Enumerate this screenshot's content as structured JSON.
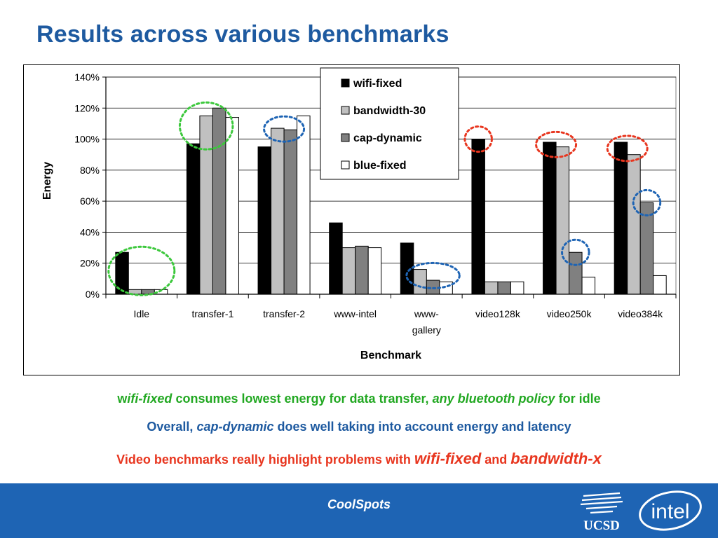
{
  "slide": {
    "title": "Results across various benchmarks"
  },
  "chart_data": {
    "type": "bar",
    "ylabel": "Energy",
    "xlabel": "Benchmark",
    "ylim": [
      0,
      140
    ],
    "yticks": [
      0,
      20,
      40,
      60,
      80,
      100,
      120,
      140
    ],
    "ytick_labels": [
      "0%",
      "20%",
      "40%",
      "60%",
      "80%",
      "100%",
      "120%",
      "140%"
    ],
    "categories": [
      "Idle",
      "transfer-1",
      "transfer-2",
      "www-intel",
      "www-gallery",
      "video128k",
      "video250k",
      "video384k"
    ],
    "category_label_lines": [
      [
        "Idle"
      ],
      [
        "transfer-1"
      ],
      [
        "transfer-2"
      ],
      [
        "www-intel"
      ],
      [
        "www-",
        "gallery"
      ],
      [
        "video128k"
      ],
      [
        "video250k"
      ],
      [
        "video384k"
      ]
    ],
    "series": [
      {
        "name": "wifi-fixed",
        "color": "#000000",
        "values": [
          27,
          97,
          95,
          46,
          33,
          100,
          98,
          98
        ]
      },
      {
        "name": "bandwidth-30",
        "color": "#c0c0c0",
        "values": [
          3,
          115,
          107,
          30,
          16,
          8,
          95,
          90
        ]
      },
      {
        "name": "cap-dynamic",
        "color": "#808080",
        "values": [
          3,
          120,
          106,
          31,
          9,
          8,
          27,
          59
        ]
      },
      {
        "name": "blue-fixed",
        "color": "#ffffff",
        "values": [
          3,
          114,
          115,
          30,
          8,
          8,
          11,
          12
        ]
      }
    ],
    "legend_position": "top-center",
    "grid": true,
    "annotations": [
      {
        "type": "dashed-ellipse",
        "color": "#3cc83c",
        "category": "Idle",
        "series": [
          "wifi-fixed",
          "bandwidth-30",
          "cap-dynamic",
          "blue-fixed"
        ]
      },
      {
        "type": "dashed-ellipse",
        "color": "#3cc83c",
        "category": "transfer-1",
        "series": [
          "wifi-fixed",
          "bandwidth-30",
          "cap-dynamic"
        ]
      },
      {
        "type": "dashed-ellipse",
        "color": "#1e64b4",
        "category": "transfer-2",
        "series": [
          "bandwidth-30",
          "cap-dynamic"
        ]
      },
      {
        "type": "dashed-ellipse",
        "color": "#1e64b4",
        "category": "www-gallery",
        "series": [
          "bandwidth-30",
          "cap-dynamic",
          "blue-fixed"
        ]
      },
      {
        "type": "dashed-ellipse",
        "color": "#e8361f",
        "category": "video128k",
        "series": [
          "wifi-fixed"
        ]
      },
      {
        "type": "dashed-ellipse",
        "color": "#e8361f",
        "category": "video250k",
        "series": [
          "wifi-fixed",
          "bandwidth-30"
        ]
      },
      {
        "type": "dashed-ellipse",
        "color": "#e8361f",
        "category": "video384k",
        "series": [
          "wifi-fixed",
          "bandwidth-30"
        ]
      },
      {
        "type": "dashed-ellipse",
        "color": "#1e64b4",
        "category": "video250k",
        "series": [
          "cap-dynamic"
        ]
      },
      {
        "type": "dashed-ellipse",
        "color": "#1e64b4",
        "category": "video384k",
        "series": [
          "cap-dynamic"
        ]
      }
    ]
  },
  "bullets": {
    "line1": {
      "part1": "w",
      "part2": "ifi-fixed",
      "part3": " consumes lowest energy for data transfer, ",
      "part4": "any bluetooth policy",
      "part5": " for idle"
    },
    "line2": {
      "part1": "Overall, ",
      "part2": "cap-dynamic",
      "part3": " does well taking into account energy and latency"
    },
    "line3": {
      "part1": "Video benchmarks really highlight problems with ",
      "part2": "wifi-fixed",
      "part3": " and ",
      "part4": "bandwidth-x"
    }
  },
  "footer": {
    "label": "CoolSpots",
    "ucsd_logo_text": "UCSD",
    "intel_logo_text": "intel",
    "color": "#1e64b4"
  },
  "colors": {
    "title": "#1e5aa0",
    "green": "#22a822",
    "blue": "#1e5aa0",
    "red": "#e8361f"
  }
}
